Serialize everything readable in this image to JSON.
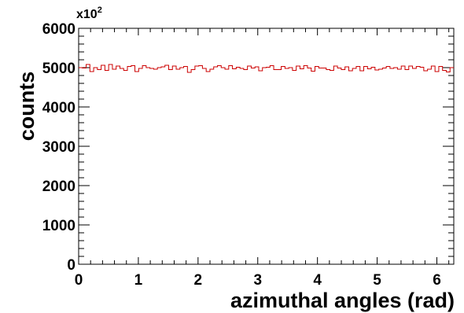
{
  "chart_data": {
    "type": "histogram",
    "xlabel": "azimuthal angles (rad)",
    "ylabel": "counts",
    "y_multiplier": {
      "base": "x10",
      "exponent": "2"
    },
    "xlim": [
      0,
      6.2832
    ],
    "ylim": [
      0,
      6000
    ],
    "xticks": [
      "0",
      "1",
      "2",
      "3",
      "4",
      "5",
      "6"
    ],
    "yticks": [
      "0",
      "1000",
      "2000",
      "3000",
      "4000",
      "5000",
      "6000"
    ],
    "line_color": "#cc0000",
    "bins": 100,
    "bin_range": [
      0,
      6.2832
    ],
    "values": [
      5000,
      4990,
      5080,
      4900,
      5000,
      4950,
      5060,
      4930,
      5080,
      4960,
      5040,
      4980,
      4930,
      5030,
      5050,
      4900,
      4980,
      5050,
      5000,
      4980,
      4960,
      5000,
      5020,
      5060,
      4950,
      5040,
      4960,
      5000,
      5030,
      4880,
      4950,
      5040,
      5050,
      4980,
      4900,
      4960,
      5020,
      5050,
      5000,
      4960,
      5050,
      4970,
      5010,
      4980,
      4950,
      5040,
      4990,
      5020,
      4920,
      5000,
      5010,
      5050,
      4950,
      4950,
      5030,
      4980,
      5000,
      4930,
      5040,
      4970,
      5050,
      4990,
      4910,
      5030,
      4990,
      4990,
      4950,
      4930,
      5040,
      4990,
      4950,
      5020,
      4920,
      4980,
      5030,
      4920,
      5030,
      4970,
      5010,
      4940,
      4960,
      4990,
      5030,
      4980,
      5000,
      4960,
      5040,
      4950,
      5040,
      4980,
      5030,
      5010,
      4920,
      4960,
      5040,
      4900,
      5030,
      4930,
      4890,
      5000
    ]
  }
}
